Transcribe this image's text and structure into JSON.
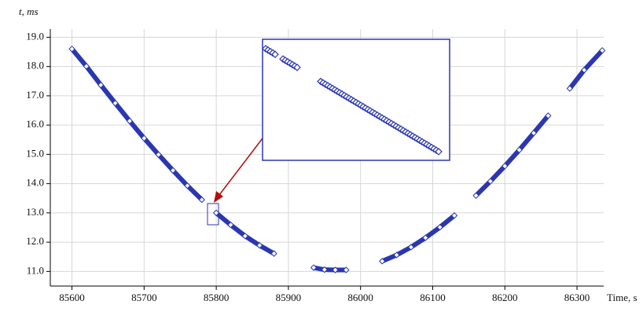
{
  "chart_data": {
    "type": "scatter",
    "y_label": "t, ms",
    "x_label": "Time, s",
    "x": [
      85600,
      85620,
      85640,
      85660,
      85680,
      85700,
      85720,
      85740,
      85760,
      85780,
      85790,
      85800,
      85820,
      85840,
      85860,
      85880,
      85905,
      85935,
      85950,
      85965,
      85980,
      86005,
      86030,
      86050,
      86070,
      86090,
      86110,
      86130,
      86145,
      86160,
      86180,
      86200,
      86220,
      86240,
      86260,
      86278,
      86290,
      86310,
      86335
    ],
    "series": [
      {
        "color": "#2a37b0",
        "values": [
          18.6,
          18.01,
          17.37,
          16.75,
          16.14,
          15.55,
          14.99,
          14.45,
          13.93,
          13.45,
          null,
          13.0,
          12.59,
          12.21,
          11.89,
          11.61,
          null,
          11.13,
          11.06,
          11.05,
          11.05,
          null,
          11.35,
          11.56,
          11.83,
          12.15,
          12.51,
          12.91,
          null,
          13.59,
          14.08,
          14.6,
          15.15,
          15.73,
          16.32,
          null,
          17.25,
          17.88,
          18.55
        ]
      }
    ],
    "xlim": [
      85570,
      86337
    ],
    "xticks": [
      85600,
      85700,
      85800,
      85900,
      86000,
      86100,
      86200,
      86300
    ],
    "ylim": [
      10.5,
      19.28
    ],
    "yticks": [
      {
        "value": 11,
        "label": "11.0"
      },
      {
        "value": 12,
        "label": "12.0"
      },
      {
        "value": 13,
        "label": "13.0"
      },
      {
        "value": 14,
        "label": "14.0"
      },
      {
        "value": 15,
        "label": "15.0"
      },
      {
        "value": 16,
        "label": "16.0"
      },
      {
        "value": 17,
        "label": "17.0"
      },
      {
        "value": 18,
        "label": "18.0"
      },
      {
        "value": 19,
        "label": "19.0"
      }
    ],
    "grid": true
  }
}
